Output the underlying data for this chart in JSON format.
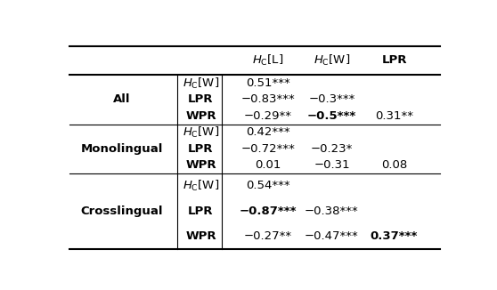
{
  "background_color": "#ffffff",
  "fontsize": 9.5,
  "sections": [
    {
      "group_label": "All",
      "rows": [
        {
          "label": "HC_W",
          "col1": "0.51***",
          "col2": "",
          "col3": "",
          "bold": [
            false,
            false,
            false
          ]
        },
        {
          "label": "LPR",
          "col1": "−0.83***",
          "col2": "−0.3***",
          "col3": "",
          "bold": [
            false,
            false,
            false
          ]
        },
        {
          "label": "WPR",
          "col1": "−0.29**",
          "col2": "−0.5***",
          "col3": "0.31**",
          "bold": [
            false,
            true,
            false
          ]
        }
      ]
    },
    {
      "group_label": "Monolingual",
      "rows": [
        {
          "label": "HC_W",
          "col1": "0.42***",
          "col2": "",
          "col3": "",
          "bold": [
            false,
            false,
            false
          ]
        },
        {
          "label": "LPR",
          "col1": "−0.72***",
          "col2": "−0.23*",
          "col3": "",
          "bold": [
            false,
            false,
            false
          ]
        },
        {
          "label": "WPR",
          "col1": "0.01",
          "col2": "−0.31",
          "col3": "0.08",
          "bold": [
            false,
            false,
            false
          ]
        }
      ]
    },
    {
      "group_label": "Crosslingual",
      "rows": [
        {
          "label": "HC_W",
          "col1": "0.54***",
          "col2": "",
          "col3": "",
          "bold": [
            false,
            false,
            false
          ]
        },
        {
          "label": "LPR",
          "col1": "−0.87***",
          "col2": "−0.38***",
          "col3": "",
          "bold": [
            true,
            false,
            false
          ]
        },
        {
          "label": "WPR",
          "col1": "−0.27**",
          "col2": "−0.47***",
          "col3": "0.37***",
          "bold": [
            false,
            false,
            true
          ]
        }
      ]
    }
  ]
}
